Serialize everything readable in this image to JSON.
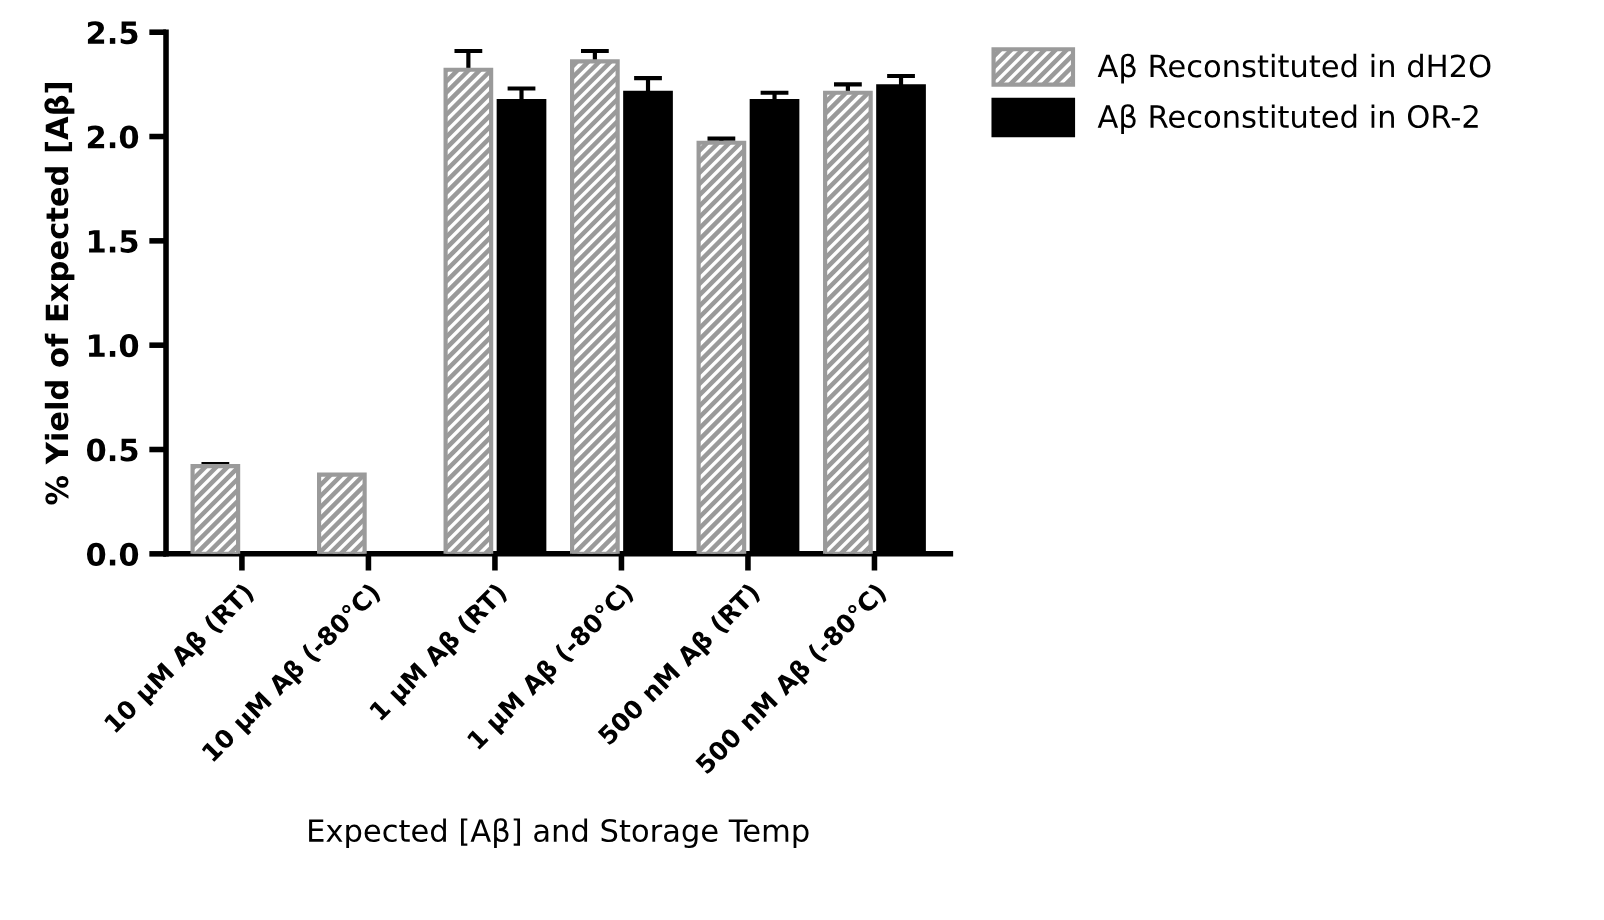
{
  "chart_data": {
    "type": "bar",
    "xlabel": "Expected [Aβ] and Storage Temp",
    "ylabel": "% Yield of Expected [Aβ]",
    "categories": [
      "10 µM Aβ (RT)",
      "10 µM Aβ (-80°C)",
      "1 µM Aβ (RT)",
      "1 µM Aβ (-80°C)",
      "500 nM Aβ (RT)",
      "500 nM Aβ (-80°C)"
    ],
    "series": [
      {
        "name": "Aβ Reconstituted in dH2O",
        "color": "#9a9a9a",
        "values": [
          0.42,
          0.38,
          2.32,
          2.36,
          1.97,
          2.21
        ],
        "errors": [
          0.01,
          null,
          0.09,
          0.05,
          0.02,
          0.04
        ]
      },
      {
        "name": "Aβ Reconstituted in OR-2",
        "color": "#000000",
        "values": [
          null,
          null,
          2.17,
          2.21,
          2.17,
          2.24
        ],
        "errors": [
          null,
          null,
          0.06,
          0.07,
          0.04,
          0.05
        ]
      }
    ],
    "ylim": [
      0,
      2.5
    ],
    "yticks": [
      {
        "value": 0,
        "label": "0.0"
      },
      {
        "value": 0.5,
        "label": "0.5"
      },
      {
        "value": 1,
        "label": "1.0"
      },
      {
        "value": 1.5,
        "label": "1.5"
      },
      {
        "value": 2,
        "label": "2.0"
      },
      {
        "value": 2.5,
        "label": "2.5"
      }
    ],
    "grid": false,
    "legend": "top right"
  }
}
